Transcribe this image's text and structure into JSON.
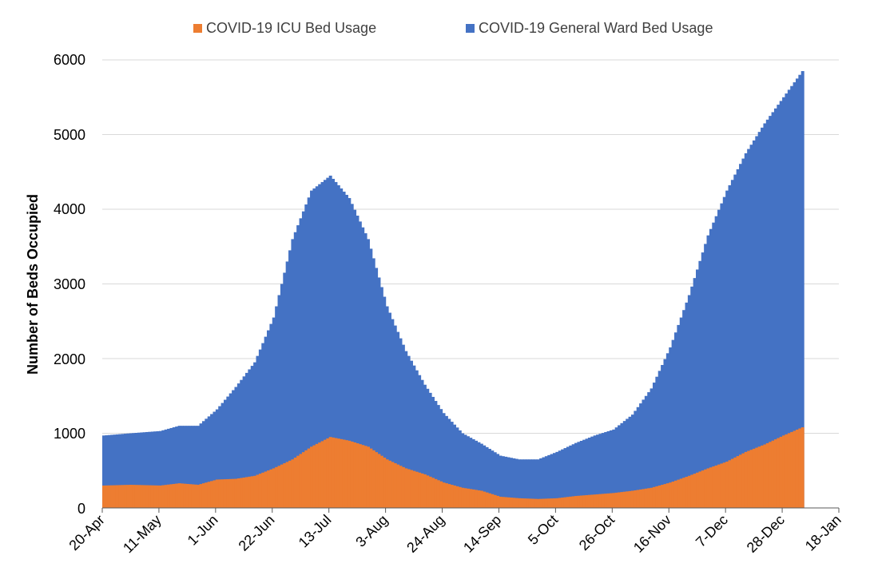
{
  "chart_data": {
    "type": "area",
    "stacked": true,
    "title": "",
    "xlabel": "",
    "ylabel": "Number of Beds Occupied",
    "ylim": [
      0,
      6000
    ],
    "yticks": [
      0,
      1000,
      2000,
      3000,
      4000,
      5000,
      6000
    ],
    "grid": true,
    "legend_position": "top-center",
    "x_start_date": "20-Apr",
    "x_end_date": "18-Jan",
    "x_day_range": [
      0,
      273
    ],
    "xtick_labels": [
      "20-Apr",
      "11-May",
      "1-Jun",
      "22-Jun",
      "13-Jul",
      "3-Aug",
      "24-Aug",
      "14-Sep",
      "5-Oct",
      "26-Oct",
      "16-Nov",
      "7-Dec",
      "28-Dec",
      "18-Jan"
    ],
    "xtick_days": [
      0,
      21,
      42,
      63,
      84,
      105,
      126,
      147,
      168,
      189,
      210,
      231,
      252,
      273
    ],
    "series": [
      {
        "name": "COVID-19 ICU Bed Usage",
        "color": "#ED7D31",
        "keypoints_day": [
          0,
          10,
          21,
          28,
          35,
          42,
          49,
          56,
          63,
          70,
          77,
          84,
          91,
          98,
          105,
          112,
          119,
          126,
          133,
          140,
          147,
          154,
          161,
          168,
          175,
          182,
          189,
          196,
          203,
          210,
          217,
          224,
          231,
          238,
          245,
          252,
          259
        ],
        "keypoints_value": [
          300,
          310,
          300,
          330,
          310,
          380,
          390,
          430,
          530,
          650,
          820,
          950,
          900,
          820,
          650,
          530,
          450,
          340,
          270,
          230,
          150,
          130,
          120,
          130,
          160,
          180,
          200,
          230,
          270,
          340,
          430,
          530,
          620,
          750,
          850,
          970,
          1080
        ]
      },
      {
        "name": "COVID-19 General Ward Bed Usage",
        "color": "#4472C4",
        "keypoints_day": [
          0,
          10,
          21,
          28,
          35,
          42,
          49,
          56,
          63,
          70,
          77,
          84,
          91,
          98,
          105,
          112,
          119,
          126,
          133,
          140,
          147,
          154,
          161,
          168,
          175,
          182,
          189,
          196,
          203,
          210,
          217,
          224,
          231,
          238,
          245,
          252,
          259
        ],
        "keypoints_total": [
          970,
          1000,
          1030,
          1100,
          1100,
          1320,
          1620,
          1950,
          2550,
          3600,
          4250,
          4450,
          4150,
          3600,
          2700,
          2100,
          1650,
          1270,
          1000,
          860,
          700,
          650,
          650,
          750,
          870,
          970,
          1050,
          1250,
          1600,
          2150,
          2850,
          3650,
          4250,
          4750,
          5150,
          5500,
          5850
        ]
      }
    ]
  }
}
